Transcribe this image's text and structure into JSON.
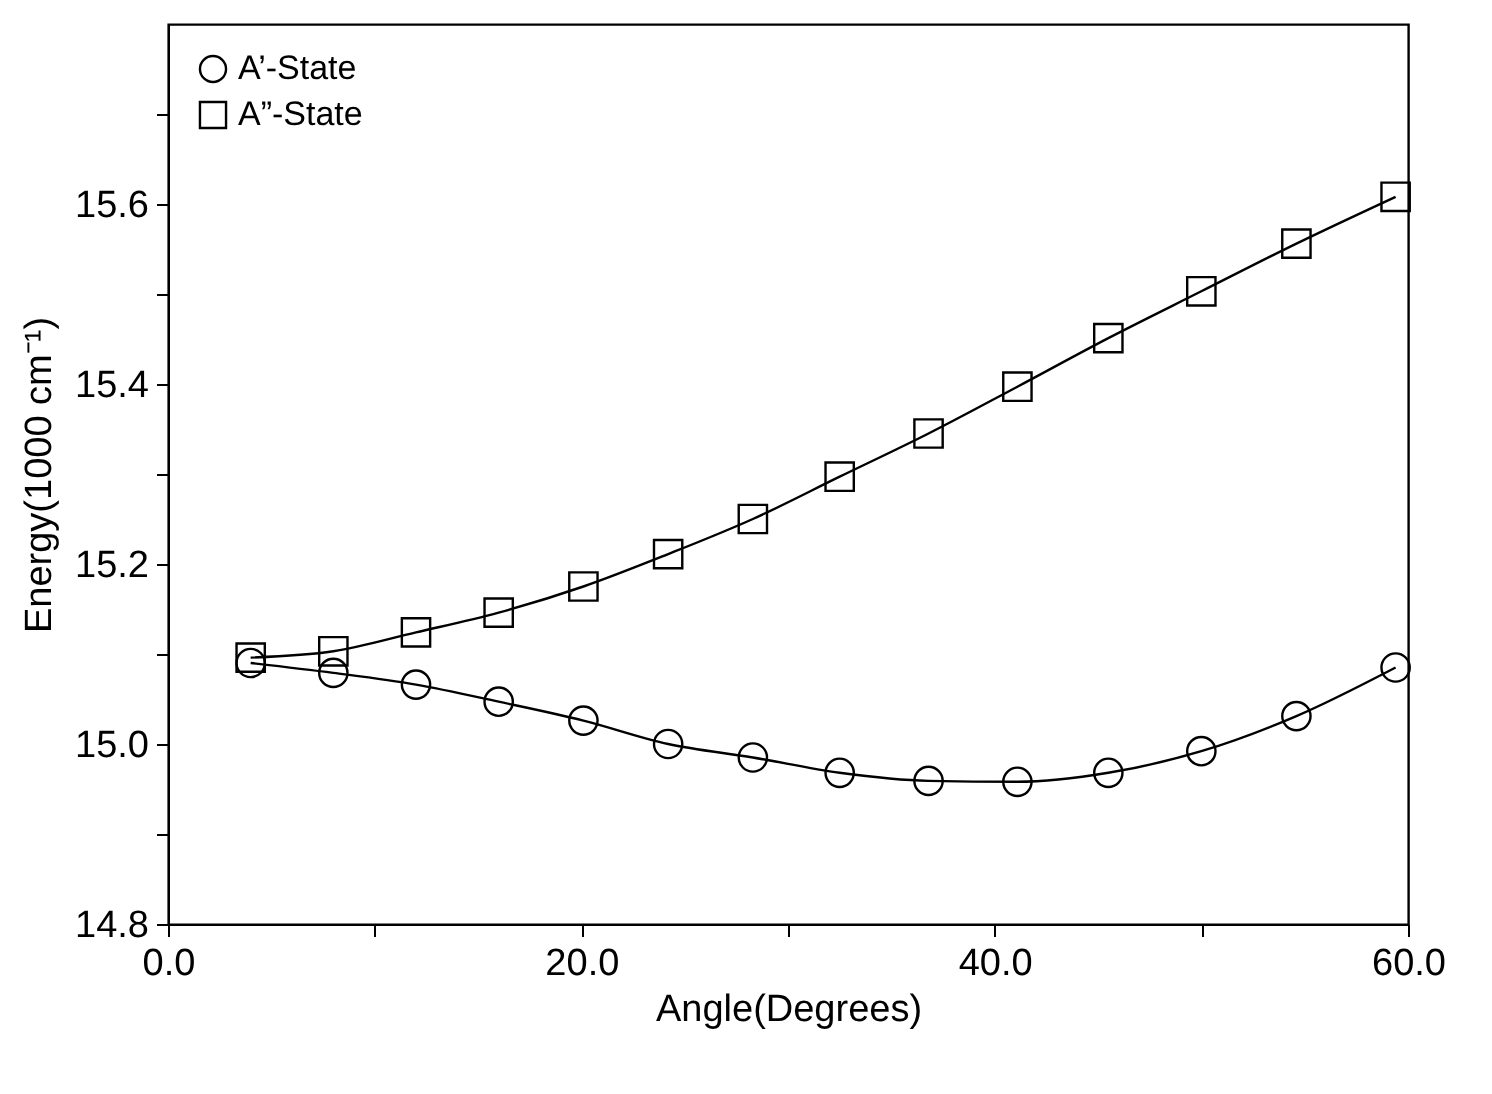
{
  "chart_data": {
    "type": "line",
    "xlabel": "Angle(Degrees)",
    "ylabel": "Energy(1000  cm⁻¹)",
    "xlim": [
      0,
      60
    ],
    "ylim": [
      14.8,
      15.8
    ],
    "xticks": [
      {
        "value": 0,
        "label": "0.0"
      },
      {
        "value": 10,
        "label": null
      },
      {
        "value": 20,
        "label": "20.0"
      },
      {
        "value": 30,
        "label": null
      },
      {
        "value": 40,
        "label": "40.0"
      },
      {
        "value": 50,
        "label": null
      },
      {
        "value": 60,
        "label": "60.0"
      }
    ],
    "yticks": [
      {
        "value": 14.8,
        "label": "14.8"
      },
      {
        "value": 14.9,
        "label": null
      },
      {
        "value": 15.0,
        "label": "15.0"
      },
      {
        "value": 15.1,
        "label": null
      },
      {
        "value": 15.2,
        "label": "15.2"
      },
      {
        "value": 15.3,
        "label": null
      },
      {
        "value": 15.4,
        "label": "15.4"
      },
      {
        "value": 15.5,
        "label": null
      },
      {
        "value": 15.6,
        "label": "15.6"
      },
      {
        "value": 15.7,
        "label": null
      }
    ],
    "x": [
      4.0,
      8.0,
      12.0,
      16.0,
      20.1,
      24.2,
      28.3,
      32.5,
      36.8,
      41.1,
      45.5,
      50.0,
      54.6,
      59.4
    ],
    "grid": false,
    "legend": "top left",
    "line_style": "solid",
    "series": [
      {
        "name": "A’-State",
        "color": "#000000",
        "marker": "circle",
        "values": [
          15.09,
          15.079,
          15.066,
          15.047,
          15.026,
          15.0,
          14.985,
          14.968,
          14.959,
          14.958,
          14.968,
          14.992,
          15.031,
          15.085
        ]
      },
      {
        "name": "A”-State",
        "color": "#000000",
        "marker": "square",
        "values": [
          15.096,
          15.103,
          15.124,
          15.146,
          15.175,
          15.211,
          15.25,
          15.297,
          15.345,
          15.397,
          15.451,
          15.503,
          15.556,
          15.608
        ]
      }
    ]
  }
}
